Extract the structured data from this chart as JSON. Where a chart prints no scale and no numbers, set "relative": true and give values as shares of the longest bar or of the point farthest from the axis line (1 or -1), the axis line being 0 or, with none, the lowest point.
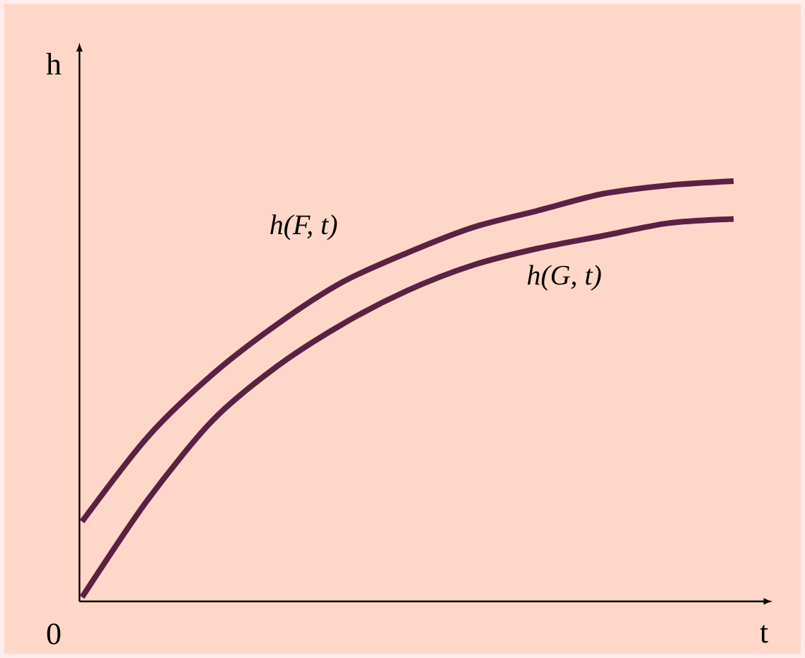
{
  "chart_data": {
    "type": "line",
    "relative": true,
    "xlabel": "t",
    "ylabel": "h",
    "annotations": [
      "0"
    ],
    "marker": "none",
    "categories": [
      null,
      null,
      null,
      null,
      null,
      null,
      null,
      null,
      null,
      null,
      null
    ],
    "series": [
      {
        "name": "h(F, t)",
        "color": "#5c2043",
        "values": [
          0.19,
          0.39,
          0.54,
          0.66,
          0.76,
          0.83,
          0.89,
          0.93,
          0.97,
          0.99,
          1
        ]
      },
      {
        "name": "h(G, t)",
        "color": "#5c2043",
        "values": [
          0.01,
          0.24,
          0.43,
          0.56,
          0.66,
          0.74,
          0.8,
          0.84,
          0.87,
          0.9,
          0.91
        ]
      }
    ]
  }
}
